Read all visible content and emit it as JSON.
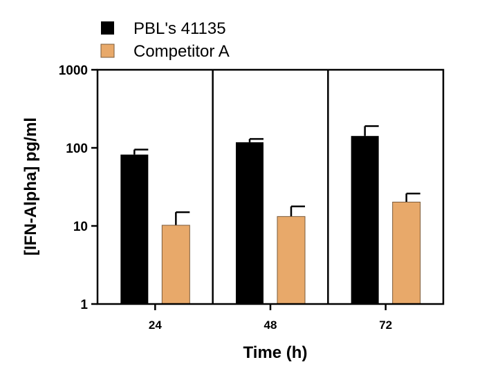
{
  "chart_data": {
    "type": "bar",
    "categories": [
      "24",
      "48",
      "72"
    ],
    "series": [
      {
        "name": "PBL's 41135",
        "values": [
          82,
          118,
          142
        ],
        "error_upper": [
          95,
          130,
          190
        ],
        "color": "#000000"
      },
      {
        "name": "Competitor A",
        "values": [
          10.2,
          13.2,
          20.2
        ],
        "error_upper": [
          15,
          17.8,
          26
        ],
        "color": "#E8A96A"
      }
    ],
    "xlabel": "Time (h)",
    "ylabel": "[IFN-Alpha] pg/ml",
    "yscale": "log",
    "ylim": [
      1,
      1000
    ],
    "yticks": [
      "1",
      "10",
      "100",
      "1000"
    ],
    "grid": false,
    "legend_position": "top-left"
  }
}
